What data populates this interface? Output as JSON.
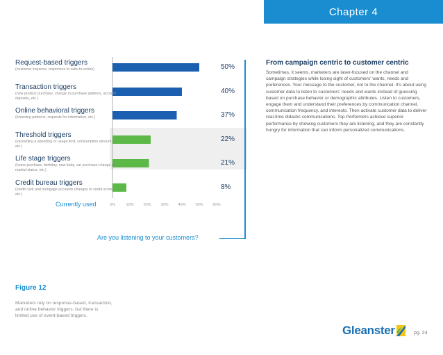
{
  "header": {
    "chapter": "Chapter 4"
  },
  "chart_data": {
    "type": "bar",
    "orientation": "horizontal",
    "categories": [
      "Request-based triggers",
      "Transaction triggers",
      "Online behavioral triggers",
      "Threshold triggers",
      "Life stage triggers",
      "Credit bureau triggers"
    ],
    "subtitles": [
      "(customer inquiries, responses to calls-to-action)",
      "(new product purchase, change in purchase patterns, account deposits, etc.)",
      "(browsing patterns, requests for information, etc.)",
      "(exceeding a spending or usage limit, consumption amount, etc.)",
      "(home purchase, birthday, new baby, car purchase change in marital status, etc.)",
      "(credit card and mortgage accounts changes to credit scores, etc.)"
    ],
    "values": [
      50,
      40,
      37,
      22,
      21,
      8
    ],
    "value_labels": [
      "50%",
      "40%",
      "37%",
      "22%",
      "21%",
      "8%"
    ],
    "groups": [
      "response",
      "response",
      "response",
      "event",
      "event",
      "event"
    ],
    "colors": {
      "response": "#1a5fb0",
      "event": "#5cb847"
    },
    "xlim": [
      0,
      60
    ],
    "ticks": [
      "0%",
      "10%",
      "20%",
      "30%",
      "40%",
      "50%",
      "60%"
    ],
    "xlabel": "Currently used",
    "highlighted_rows": [
      3,
      4
    ]
  },
  "callout": {
    "question": "Are you listening to your customers?"
  },
  "article": {
    "title": "From campaign centric to customer centric",
    "body": "Sometimes, it seems, marketers are laser-focused on the channel and campaign strategies while losing sight of customers' wants, needs and preferences. Your message to the customer, not to the channel. It's about using customer data to listen to customers' needs and wants instead of guessing based on purchase behavior or demographic attributes. Listen to customers, engage them and understand their preferences by communication channel, communication frequency, and interests. Then activate customer data to deliver real-time didactic communications. Top Performers achieve superior performance by showing customers they are listening, and they are constantly hungry for information that can inform personalized communications."
  },
  "figure": {
    "label": "Figure 12",
    "caption": "Marketers rely on response-based, transaction, and online behavior triggers, but there is limited use of event-based triggers."
  },
  "footer": {
    "brand": "Gleanster",
    "page": "pg. 24",
    "accent": "#1a6fb3"
  }
}
